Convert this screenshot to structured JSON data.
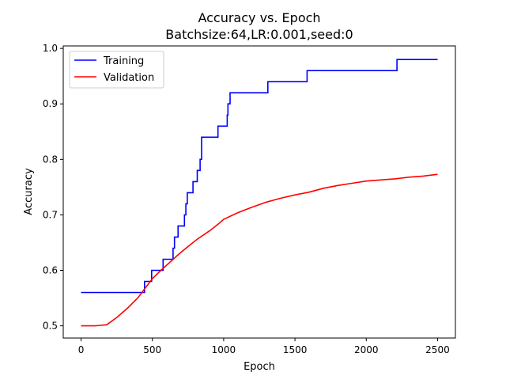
{
  "chart_data": {
    "type": "line",
    "title": "Accuracy vs. Epoch",
    "subtitle": "Batchsize:64,LR:0.001,seed:0",
    "xlabel": "Epoch",
    "ylabel": "Accuracy",
    "xlim": [
      -125,
      2625
    ],
    "ylim": [
      0.478,
      1.0045
    ],
    "xticks": [
      0,
      500,
      1000,
      1500,
      2000,
      2500
    ],
    "yticks": [
      0.5,
      0.6,
      0.7,
      0.8,
      0.9,
      1.0
    ],
    "xtick_labels": [
      "0",
      "500",
      "1000",
      "1500",
      "2000",
      "2500"
    ],
    "ytick_labels": [
      "0.5",
      "0.6",
      "0.7",
      "0.8",
      "0.9",
      "1.0"
    ],
    "grid": false,
    "legend": "top-left",
    "series": [
      {
        "name": "Training",
        "color": "#0000ff",
        "step": true,
        "x": [
          0,
          445,
          495,
          575,
          645,
          655,
          680,
          725,
          735,
          745,
          785,
          815,
          835,
          845,
          960,
          1025,
          1030,
          1045,
          1310,
          1585,
          2215,
          2500
        ],
        "y": [
          0.56,
          0.58,
          0.6,
          0.62,
          0.64,
          0.66,
          0.68,
          0.7,
          0.72,
          0.74,
          0.76,
          0.78,
          0.8,
          0.84,
          0.86,
          0.88,
          0.9,
          0.92,
          0.94,
          0.96,
          0.98,
          0.98
        ]
      },
      {
        "name": "Validation",
        "color": "#ff0000",
        "step": false,
        "x": [
          0,
          100,
          180,
          250,
          330,
          400,
          450,
          500,
          560,
          620,
          680,
          750,
          820,
          900,
          960,
          1000,
          1100,
          1200,
          1300,
          1400,
          1500,
          1600,
          1700,
          1800,
          1900,
          2000,
          2100,
          2200,
          2300,
          2400,
          2500
        ],
        "y": [
          0.5,
          0.5,
          0.502,
          0.515,
          0.533,
          0.551,
          0.568,
          0.585,
          0.6,
          0.614,
          0.628,
          0.643,
          0.657,
          0.671,
          0.683,
          0.692,
          0.704,
          0.714,
          0.723,
          0.73,
          0.736,
          0.741,
          0.748,
          0.753,
          0.757,
          0.761,
          0.763,
          0.765,
          0.768,
          0.77,
          0.773
        ]
      }
    ]
  }
}
